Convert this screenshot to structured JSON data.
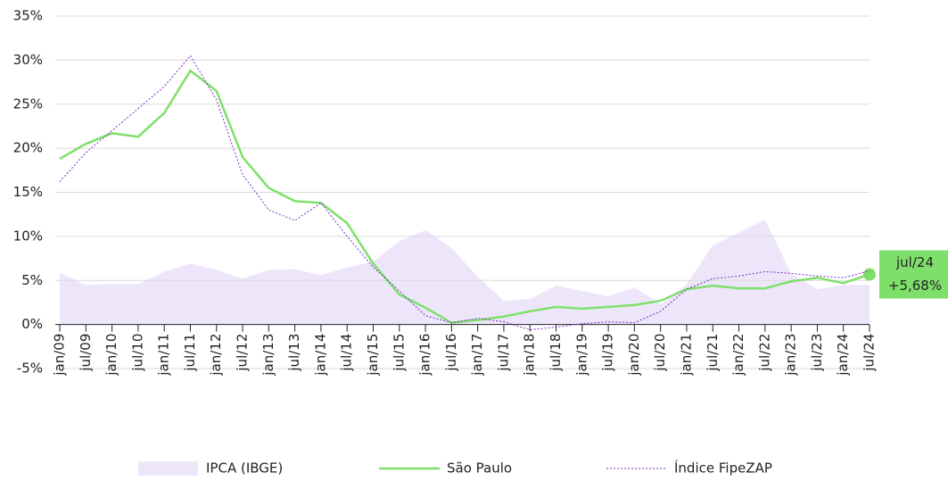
{
  "chart_data": {
    "type": "line",
    "categories": [
      "jan/09",
      "jul/09",
      "jan/10",
      "jul/10",
      "jan/11",
      "jul/11",
      "jan/12",
      "jul/12",
      "jan/13",
      "jul/13",
      "jan/14",
      "jul/14",
      "jan/15",
      "jul/15",
      "jan/16",
      "jul/16",
      "jan/17",
      "jul/17",
      "jan/18",
      "jul/18",
      "jan/19",
      "jul/19",
      "jan/20",
      "jul/20",
      "jan/21",
      "jul/21",
      "jan/22",
      "jul/22",
      "jan/23",
      "jul/23",
      "jan/24",
      "jul/24"
    ],
    "series": [
      {
        "name": "IPCA (IBGE)",
        "color": "#ede6fb",
        "style": "area",
        "values": [
          5.9,
          4.5,
          4.6,
          4.6,
          6.0,
          6.9,
          6.2,
          5.2,
          6.2,
          6.3,
          5.6,
          6.5,
          7.1,
          9.5,
          10.7,
          8.7,
          5.4,
          2.7,
          2.9,
          4.4,
          3.8,
          3.2,
          4.2,
          2.3,
          4.6,
          9.0,
          10.4,
          11.9,
          5.8,
          4.0,
          4.5,
          4.5
        ]
      },
      {
        "name": "São Paulo",
        "color": "#7ee06a",
        "style": "line",
        "values": [
          18.8,
          20.5,
          21.7,
          21.3,
          24.0,
          28.8,
          26.5,
          19.0,
          15.5,
          14.0,
          13.8,
          11.5,
          6.9,
          3.4,
          1.9,
          0.2,
          0.5,
          0.9,
          1.5,
          2.0,
          1.8,
          2.0,
          2.2,
          2.7,
          4.0,
          4.4,
          4.1,
          4.1,
          4.9,
          5.3,
          4.7,
          5.68
        ],
        "value_labels": [
          null,
          null,
          null,
          null,
          null,
          null,
          null,
          null,
          null,
          null,
          null,
          null,
          null,
          null,
          null,
          null,
          null,
          null,
          null,
          null,
          null,
          null,
          null,
          null,
          null,
          null,
          null,
          null,
          null,
          null,
          null,
          "+5,68%"
        ]
      },
      {
        "name": "Índice FipeZAP",
        "color": "#7b2fbe",
        "style": "dotted",
        "values": [
          16.2,
          19.5,
          22.0,
          24.5,
          27.0,
          30.5,
          25.5,
          17.0,
          13.0,
          11.8,
          13.8,
          10.0,
          6.5,
          3.8,
          1.0,
          0.2,
          0.7,
          0.3,
          -0.6,
          -0.3,
          0.1,
          0.3,
          0.2,
          1.5,
          4.0,
          5.2,
          5.5,
          6.0,
          5.8,
          5.5,
          5.3,
          6.1
        ]
      }
    ],
    "ylim": [
      -5,
      35
    ],
    "yticks": [
      {
        "value": -5,
        "label": "-5%"
      },
      {
        "value": 0,
        "label": "0%"
      },
      {
        "value": 5,
        "label": "5%"
      },
      {
        "value": 10,
        "label": "10%"
      },
      {
        "value": 15,
        "label": "15%"
      },
      {
        "value": 20,
        "label": "20%"
      },
      {
        "value": 25,
        "label": "25%"
      },
      {
        "value": 30,
        "label": "30%"
      },
      {
        "value": 35,
        "label": "35%"
      }
    ],
    "grid": true
  }
}
